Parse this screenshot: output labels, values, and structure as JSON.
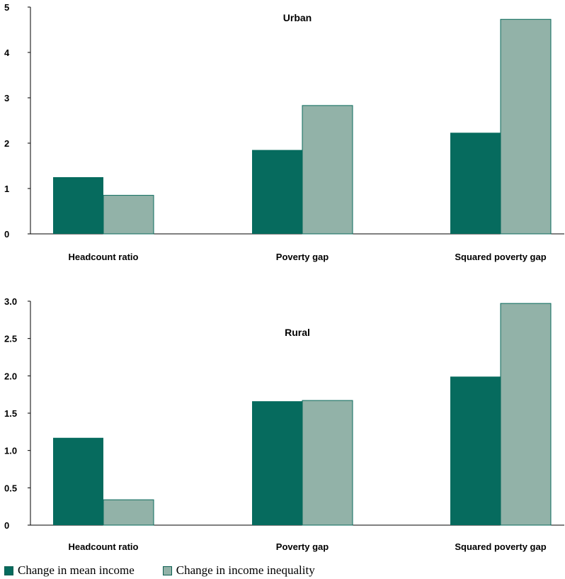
{
  "colors": {
    "mean_income": "#066b5e",
    "inequality": "#92b2a8",
    "inequality_stroke": "#0b6b5c"
  },
  "legend": {
    "items": [
      {
        "label": "Change in mean income",
        "color": "#066b5e"
      },
      {
        "label": "Change in income inequality",
        "color": "#92b2a8"
      }
    ]
  },
  "chart_data": [
    {
      "type": "bar",
      "title": "Urban",
      "categories": [
        "Headcount ratio",
        "Poverty gap",
        "Squared poverty gap"
      ],
      "series": [
        {
          "name": "Change in mean income",
          "values": [
            1.25,
            1.85,
            2.23
          ]
        },
        {
          "name": "Change in income inequality",
          "values": [
            0.85,
            2.83,
            4.73
          ]
        }
      ],
      "ylim": [
        0,
        5
      ],
      "yticks": [
        "0",
        "1",
        "2",
        "3",
        "4",
        "5"
      ],
      "ytick_values": [
        0,
        1,
        2,
        3,
        4,
        5
      ],
      "grid": false
    },
    {
      "type": "bar",
      "title": "Rural",
      "categories": [
        "Headcount ratio",
        "Poverty gap",
        "Squared poverty gap"
      ],
      "series": [
        {
          "name": "Change in mean income",
          "values": [
            1.17,
            1.66,
            1.99
          ]
        },
        {
          "name": "Change in income inequality",
          "values": [
            0.34,
            1.67,
            2.97
          ]
        }
      ],
      "ylim": [
        0,
        3
      ],
      "yticks": [
        "0",
        "0.5",
        "1.0",
        "1.5",
        "2.0",
        "2.5",
        "3.0"
      ],
      "ytick_values": [
        0,
        0.5,
        1.0,
        1.5,
        2.0,
        2.5,
        3.0
      ],
      "grid": false
    }
  ]
}
